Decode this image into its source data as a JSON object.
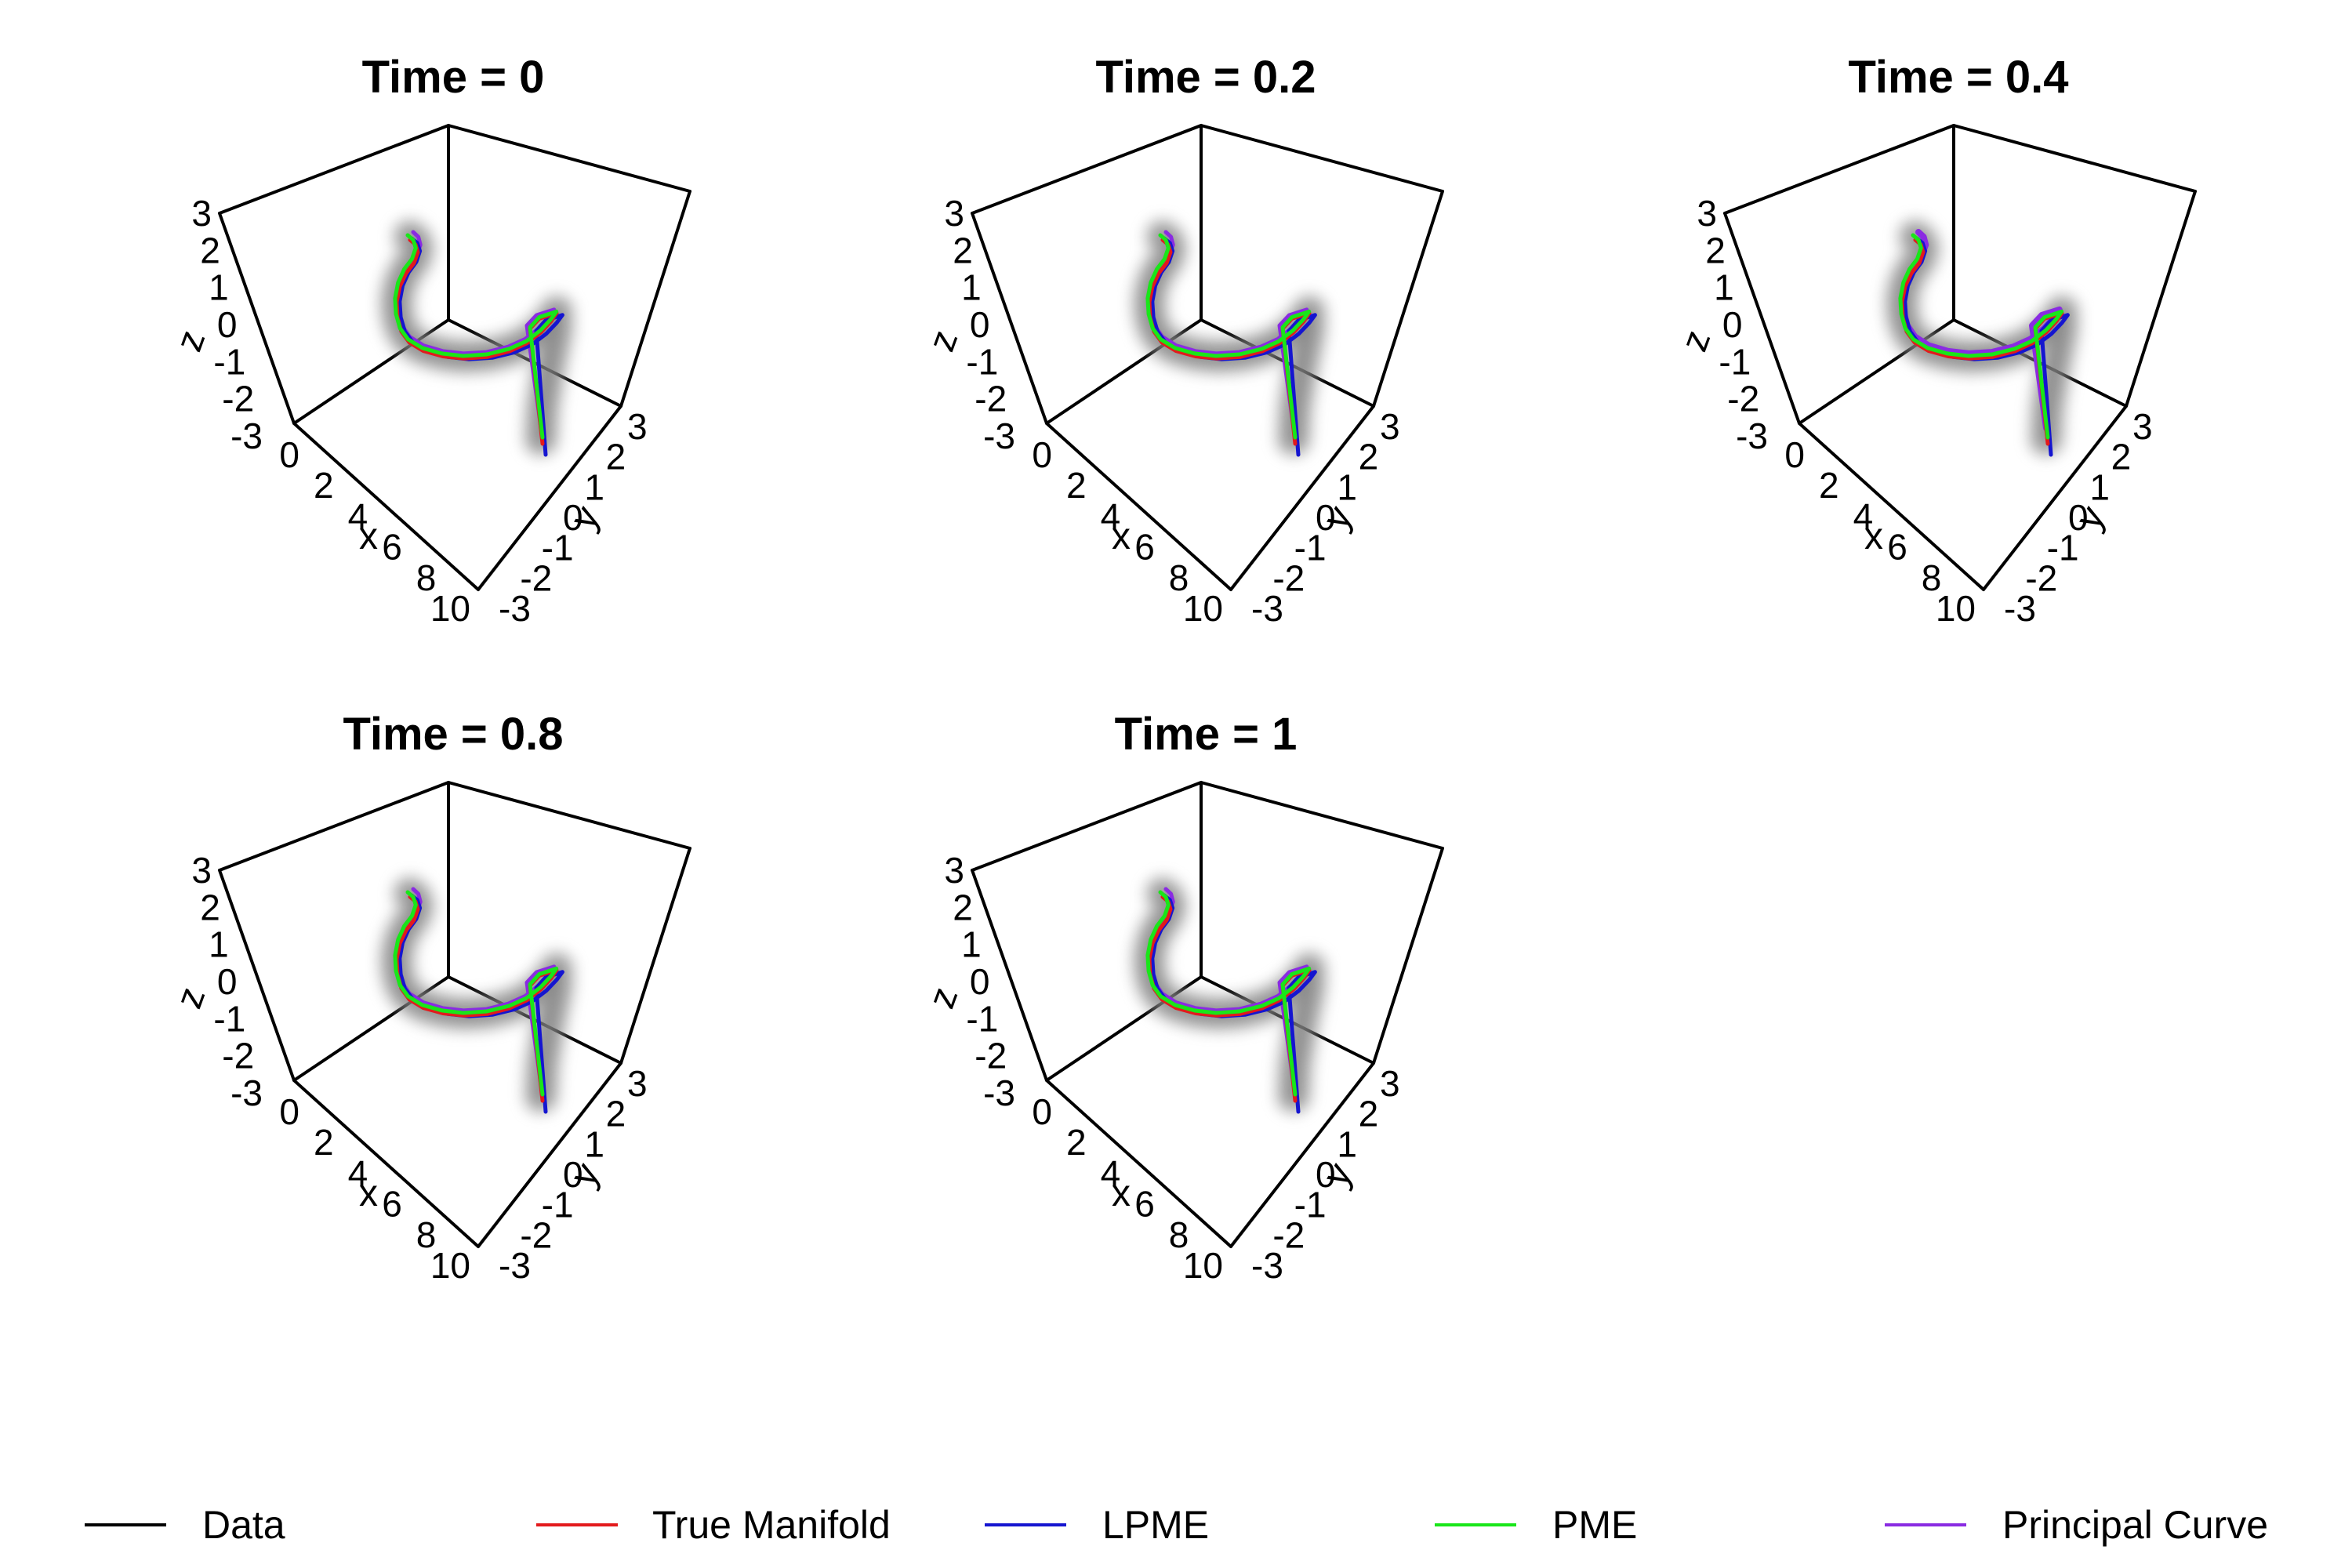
{
  "chart_data": {
    "type": "line",
    "series_legend": [
      {
        "name": "Data",
        "color": "#000000"
      },
      {
        "name": "True Manifold",
        "color": "#e31a1c"
      },
      {
        "name": "LPME",
        "color": "#1515d0"
      },
      {
        "name": "PME",
        "color": "#19e619"
      },
      {
        "name": "Principal Curve",
        "color": "#8a2be2"
      }
    ],
    "axes": {
      "x": {
        "label": "x",
        "ticks": [
          "0",
          "2",
          "4",
          "6",
          "8",
          "10"
        ]
      },
      "y": {
        "label": "y",
        "ticks": [
          "-3",
          "-2",
          "-1",
          "0",
          "1",
          "2",
          "3"
        ]
      },
      "z": {
        "label": "z",
        "ticks": [
          "-3",
          "-2",
          "-1",
          "0",
          "1",
          "2",
          "3"
        ]
      }
    },
    "panels": [
      {
        "title": "Time = 0"
      },
      {
        "title": "Time = 0.2"
      },
      {
        "title": "Time = 0.4"
      },
      {
        "title": "Time = 0.8"
      },
      {
        "title": "Time = 1"
      }
    ]
  }
}
